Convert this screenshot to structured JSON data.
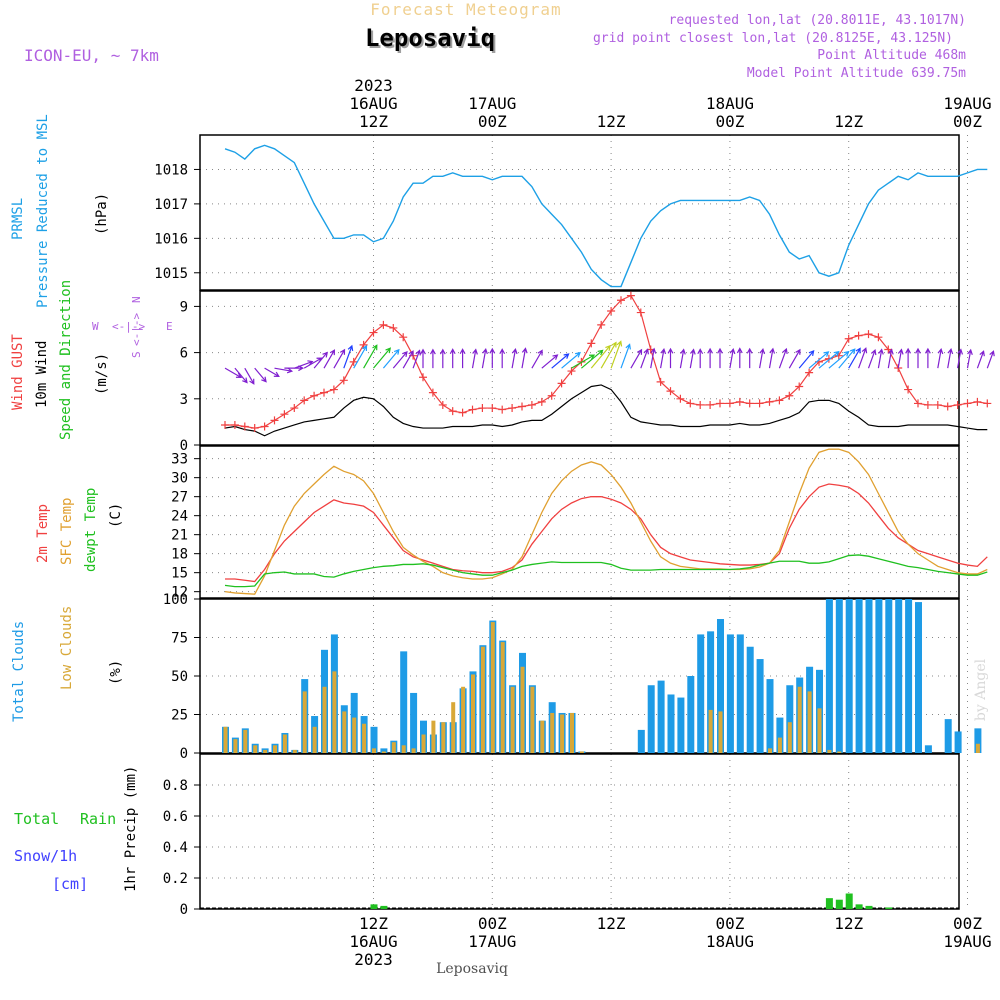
{
  "header": {
    "product": "Forecast Meteogram",
    "location": "Leposaviq",
    "model": "ICON-EU, ~ 7km",
    "requested": "requested lon,lat (20.8011E, 43.1017N)",
    "gridpoint": "grid point closest lon,lat (20.8125E, 43.125N)",
    "point_alt": "Point Altitude 468m",
    "model_alt": "Model Point Altitude 639.75m",
    "footer_location": "Leposaviq",
    "watermark": "by Angel"
  },
  "colors": {
    "pressure": "#1da0e6",
    "gust": "#f04040",
    "wind": "#000000",
    "t2m": "#f04040",
    "sfc": "#e0a030",
    "dew": "#20c020",
    "total_cloud": "#1e9be6",
    "low_cloud": "#d8a838",
    "rain": "#20c020",
    "snow": "#4040ff",
    "purple": "#b060e0"
  },
  "time_axis": {
    "top_labels": [
      {
        "hour": 15,
        "lines": [
          "2023",
          "16AUG",
          "12Z"
        ]
      },
      {
        "hour": 27,
        "lines": [
          "17AUG",
          "00Z"
        ]
      },
      {
        "hour": 39,
        "lines": [
          "12Z"
        ]
      },
      {
        "hour": 51,
        "lines": [
          "18AUG",
          "00Z"
        ]
      },
      {
        "hour": 63,
        "lines": [
          "12Z"
        ]
      },
      {
        "hour": 75,
        "lines": [
          "19AUG",
          "00Z"
        ]
      }
    ],
    "bottom_labels": [
      {
        "hour": 15,
        "lines": [
          "12Z",
          "16AUG",
          "2023"
        ]
      },
      {
        "hour": 27,
        "lines": [
          "00Z",
          "17AUG"
        ]
      },
      {
        "hour": 39,
        "lines": [
          "12Z"
        ]
      },
      {
        "hour": 51,
        "lines": [
          "00Z",
          "18AUG"
        ]
      },
      {
        "hour": 63,
        "lines": [
          "12Z"
        ]
      },
      {
        "hour": 75,
        "lines": [
          "00Z",
          "19AUG"
        ]
      }
    ]
  },
  "chart_data": [
    {
      "id": "pressure",
      "type": "line",
      "title": "PRMSL Pressure Reduced to MSL",
      "ylabel_lines": [
        "PRMSL",
        "Pressure Reduced to MSL"
      ],
      "units": "(hPa)",
      "yticks": [
        1015,
        1016,
        1017,
        1018
      ],
      "ylim": [
        1014.5,
        1019.0
      ],
      "x_hours": [
        0,
        1,
        2,
        3,
        4,
        5,
        6,
        7,
        8,
        9,
        10,
        11,
        12,
        13,
        14,
        15,
        16,
        17,
        18,
        19,
        20,
        21,
        22,
        23,
        24,
        25,
        26,
        27,
        28,
        29,
        30,
        31,
        32,
        33,
        34,
        35,
        36,
        37,
        38,
        39,
        40,
        41,
        42,
        43,
        44,
        45,
        46,
        47,
        48,
        49,
        50,
        51,
        52,
        53,
        54,
        55,
        56,
        57,
        58,
        59,
        60,
        61,
        62,
        63,
        64,
        65,
        66,
        67,
        68,
        69,
        70,
        71,
        72,
        73,
        74,
        75,
        76,
        77
      ],
      "values": [
        1018.6,
        1018.5,
        1018.3,
        1018.6,
        1018.7,
        1018.6,
        1018.4,
        1018.2,
        1017.6,
        1017.0,
        1016.5,
        1016.0,
        1016.0,
        1016.1,
        1016.1,
        1015.9,
        1016.0,
        1016.5,
        1017.2,
        1017.6,
        1017.6,
        1017.8,
        1017.8,
        1017.9,
        1017.8,
        1017.8,
        1017.8,
        1017.7,
        1017.8,
        1017.8,
        1017.8,
        1017.5,
        1017.0,
        1016.7,
        1016.4,
        1016.0,
        1015.6,
        1015.1,
        1014.8,
        1014.6,
        1014.6,
        1015.3,
        1016.0,
        1016.5,
        1016.8,
        1017.0,
        1017.1,
        1017.1,
        1017.1,
        1017.1,
        1017.1,
        1017.1,
        1017.1,
        1017.2,
        1017.1,
        1016.7,
        1016.1,
        1015.6,
        1015.4,
        1015.5,
        1015.0,
        1014.9,
        1015.0,
        1015.8,
        1016.4,
        1017.0,
        1017.4,
        1017.6,
        1017.8,
        1017.7,
        1017.9,
        1017.8,
        1017.8,
        1017.8,
        1017.8,
        1017.9,
        1018.0,
        1018.0
      ]
    },
    {
      "id": "wind",
      "type": "line",
      "title": "Wind GUST, 10m Wind Speed and Direction",
      "ylabel_lines": [
        "Wind GUST",
        "10m Wind",
        "Speed and Direction"
      ],
      "units": "(m/s)",
      "compass": {
        "n": "N",
        "s": "S",
        "w": "W",
        "e": "E"
      },
      "yticks": [
        0,
        3,
        6,
        9
      ],
      "ylim": [
        0,
        10
      ],
      "x_hours": [
        0,
        1,
        2,
        3,
        4,
        5,
        6,
        7,
        8,
        9,
        10,
        11,
        12,
        13,
        14,
        15,
        16,
        17,
        18,
        19,
        20,
        21,
        22,
        23,
        24,
        25,
        26,
        27,
        28,
        29,
        30,
        31,
        32,
        33,
        34,
        35,
        36,
        37,
        38,
        39,
        40,
        41,
        42,
        43,
        44,
        45,
        46,
        47,
        48,
        49,
        50,
        51,
        52,
        53,
        54,
        55,
        56,
        57,
        58,
        59,
        60,
        61,
        62,
        63,
        64,
        65,
        66,
        67,
        68,
        69,
        70,
        71,
        72,
        73,
        74,
        75,
        76,
        77
      ],
      "gust": [
        1.3,
        1.3,
        1.2,
        1.1,
        1.2,
        1.6,
        2.0,
        2.4,
        2.9,
        3.2,
        3.4,
        3.6,
        4.2,
        5.4,
        6.5,
        7.3,
        7.8,
        7.6,
        7.0,
        5.8,
        4.4,
        3.4,
        2.6,
        2.2,
        2.1,
        2.3,
        2.4,
        2.4,
        2.3,
        2.4,
        2.5,
        2.6,
        2.8,
        3.2,
        4.0,
        4.8,
        5.4,
        6.6,
        7.8,
        8.7,
        9.4,
        9.7,
        8.6,
        6.2,
        4.1,
        3.5,
        3.0,
        2.7,
        2.6,
        2.6,
        2.7,
        2.7,
        2.8,
        2.7,
        2.7,
        2.8,
        2.9,
        3.2,
        3.8,
        4.7,
        5.4,
        5.6,
        5.8,
        6.9,
        7.1,
        7.2,
        7.0,
        6.2,
        5.0,
        3.6,
        2.7,
        2.6,
        2.6,
        2.5,
        2.6,
        2.7,
        2.8,
        2.7
      ],
      "wind": [
        1.1,
        1.2,
        1.0,
        0.9,
        0.6,
        0.9,
        1.1,
        1.3,
        1.5,
        1.6,
        1.7,
        1.8,
        2.4,
        2.9,
        3.1,
        3.0,
        2.5,
        1.8,
        1.4,
        1.2,
        1.1,
        1.1,
        1.1,
        1.2,
        1.2,
        1.2,
        1.3,
        1.3,
        1.2,
        1.3,
        1.5,
        1.6,
        1.6,
        2.0,
        2.5,
        3.0,
        3.4,
        3.8,
        3.9,
        3.6,
        2.8,
        1.8,
        1.5,
        1.4,
        1.3,
        1.3,
        1.2,
        1.2,
        1.2,
        1.3,
        1.3,
        1.3,
        1.4,
        1.3,
        1.3,
        1.4,
        1.6,
        1.8,
        2.1,
        2.8,
        2.9,
        2.9,
        2.7,
        2.2,
        1.8,
        1.3,
        1.2,
        1.2,
        1.2,
        1.3,
        1.3,
        1.3,
        1.3,
        1.3,
        1.2,
        1.1,
        1.0,
        1.0
      ],
      "barb_dirs_deg": [
        300,
        320,
        330,
        320,
        300,
        280,
        270,
        250,
        240,
        220,
        210,
        210,
        200,
        210,
        210,
        220,
        220,
        220,
        210,
        200,
        180,
        180,
        180,
        180,
        180,
        190,
        190,
        180,
        180,
        190,
        190,
        210,
        230,
        230,
        230,
        240,
        230,
        220,
        210,
        200,
        200,
        210,
        200,
        190,
        190,
        180,
        190,
        190,
        180,
        180,
        180,
        190,
        180,
        180,
        190,
        190,
        200,
        210,
        220,
        230,
        230,
        230,
        220,
        210,
        200,
        200,
        190,
        190,
        190,
        180,
        180,
        180,
        190,
        190,
        190,
        190,
        200,
        200
      ]
    },
    {
      "id": "temperature",
      "type": "line",
      "title": "2m Temp, SFC Temp, dewpt Temp",
      "ylabel_lines": [
        "2m Temp",
        "SFC Temp",
        "dewpt Temp"
      ],
      "units": "(C)",
      "yticks": [
        12,
        15,
        18,
        21,
        24,
        27,
        30,
        33
      ],
      "ylim": [
        11,
        35
      ],
      "x_hours": [
        0,
        1,
        2,
        3,
        4,
        5,
        6,
        7,
        8,
        9,
        10,
        11,
        12,
        13,
        14,
        15,
        16,
        17,
        18,
        19,
        20,
        21,
        22,
        23,
        24,
        25,
        26,
        27,
        28,
        29,
        30,
        31,
        32,
        33,
        34,
        35,
        36,
        37,
        38,
        39,
        40,
        41,
        42,
        43,
        44,
        45,
        46,
        47,
        48,
        49,
        50,
        51,
        52,
        53,
        54,
        55,
        56,
        57,
        58,
        59,
        60,
        61,
        62,
        63,
        64,
        65,
        66,
        67,
        68,
        69,
        70,
        71,
        72,
        73,
        74,
        75,
        76,
        77
      ],
      "series": [
        {
          "name": "2m Temp",
          "values": [
            14.0,
            14.0,
            13.8,
            13.6,
            15.5,
            18.0,
            20.0,
            21.5,
            23.0,
            24.5,
            25.5,
            26.5,
            26.0,
            25.8,
            25.5,
            24.5,
            22.5,
            20.5,
            18.5,
            17.5,
            17.0,
            16.5,
            16.0,
            15.5,
            15.3,
            15.2,
            15.0,
            15.0,
            15.2,
            15.8,
            17.0,
            19.5,
            21.5,
            23.5,
            25.0,
            26.0,
            26.7,
            27.0,
            27.0,
            26.6,
            26.0,
            25.0,
            23.5,
            21.0,
            19.0,
            18.0,
            17.5,
            17.0,
            16.8,
            16.6,
            16.4,
            16.3,
            16.2,
            16.2,
            16.3,
            16.5,
            18.0,
            22.0,
            25.0,
            27.0,
            28.5,
            29.0,
            28.8,
            28.5,
            27.5,
            26.0,
            24.0,
            22.0,
            20.5,
            19.5,
            18.5,
            18.0,
            17.5,
            17.0,
            16.5,
            16.2,
            16.0,
            17.5
          ]
        },
        {
          "name": "SFC Temp",
          "values": [
            12.0,
            11.8,
            11.7,
            11.6,
            14.5,
            18.5,
            22.5,
            25.5,
            27.5,
            29.0,
            30.5,
            31.8,
            31.0,
            30.5,
            29.5,
            27.5,
            24.5,
            21.5,
            19.0,
            17.8,
            16.8,
            16.0,
            15.0,
            14.5,
            14.2,
            14.0,
            14.0,
            14.2,
            14.8,
            15.5,
            17.5,
            21.0,
            24.5,
            27.5,
            29.5,
            31.0,
            32.0,
            32.5,
            32.0,
            30.5,
            28.5,
            26.0,
            23.0,
            20.0,
            17.5,
            16.5,
            16.0,
            15.8,
            15.6,
            15.6,
            15.6,
            15.5,
            15.5,
            15.6,
            15.9,
            16.5,
            18.5,
            23.0,
            27.5,
            31.5,
            34.0,
            34.5,
            34.5,
            34.0,
            32.5,
            30.5,
            27.5,
            24.5,
            21.5,
            19.5,
            18.0,
            17.0,
            16.0,
            15.5,
            15.0,
            14.8,
            14.8,
            15.5
          ]
        },
        {
          "name": "dewpt Temp",
          "values": [
            13.0,
            12.8,
            12.8,
            12.9,
            14.8,
            15.0,
            15.1,
            14.8,
            14.8,
            14.8,
            14.4,
            14.3,
            14.8,
            15.2,
            15.5,
            15.8,
            16.0,
            16.1,
            16.3,
            16.3,
            16.4,
            16.2,
            15.8,
            15.4,
            15.0,
            14.8,
            14.6,
            14.6,
            15.0,
            15.4,
            16.0,
            16.3,
            16.5,
            16.7,
            16.6,
            16.6,
            16.6,
            16.6,
            16.6,
            16.3,
            15.7,
            15.4,
            15.4,
            15.4,
            15.5,
            15.5,
            15.5,
            15.5,
            15.5,
            15.5,
            15.5,
            15.5,
            15.6,
            15.8,
            16.2,
            16.5,
            16.8,
            16.8,
            16.8,
            16.5,
            16.5,
            16.7,
            17.2,
            17.7,
            17.8,
            17.6,
            17.2,
            16.8,
            16.4,
            16.0,
            15.8,
            15.5,
            15.2,
            15.0,
            14.8,
            14.6,
            14.6,
            15.1
          ]
        }
      ]
    },
    {
      "id": "clouds",
      "type": "bar",
      "title": "Total Clouds, Low Clouds",
      "ylabel_lines": [
        "Total Clouds",
        "Low Clouds"
      ],
      "units": "(%)",
      "yticks": [
        0,
        25,
        50,
        75,
        100
      ],
      "ylim": [
        0,
        100
      ],
      "x_hours": [
        0,
        1,
        2,
        3,
        4,
        5,
        6,
        7,
        8,
        9,
        10,
        11,
        12,
        13,
        14,
        15,
        16,
        17,
        18,
        19,
        20,
        21,
        22,
        23,
        24,
        25,
        26,
        27,
        28,
        29,
        30,
        31,
        32,
        33,
        34,
        35,
        36,
        37,
        38,
        39,
        40,
        41,
        42,
        43,
        44,
        45,
        46,
        47,
        48,
        49,
        50,
        51,
        52,
        53,
        54,
        55,
        56,
        57,
        58,
        59,
        60,
        61,
        62,
        63,
        64,
        65,
        66,
        67,
        68,
        69,
        70,
        71,
        72,
        73,
        74,
        75,
        76
      ],
      "series": [
        {
          "name": "Total Clouds",
          "values": [
            17,
            10,
            16,
            6,
            3,
            6,
            13,
            2,
            48,
            24,
            67,
            77,
            31,
            39,
            24,
            17,
            3,
            8,
            66,
            39,
            21,
            12,
            20,
            20,
            42,
            53,
            70,
            86,
            73,
            44,
            65,
            44,
            21,
            33,
            26,
            26,
            1,
            0,
            0,
            0,
            0,
            0,
            15,
            44,
            47,
            38,
            36,
            50,
            77,
            79,
            87,
            77,
            77,
            69,
            61,
            48,
            23,
            44,
            49,
            56,
            54,
            100,
            100,
            100,
            100,
            100,
            100,
            100,
            100,
            100,
            98,
            5,
            0,
            22,
            14,
            0,
            16
          ]
        },
        {
          "name": "Low Clouds",
          "values": [
            17,
            9,
            15,
            5,
            2,
            5,
            12,
            2,
            40,
            17,
            43,
            53,
            27,
            23,
            19,
            3,
            1,
            7,
            5,
            3,
            12,
            21,
            20,
            33,
            43,
            51,
            69,
            85,
            72,
            43,
            56,
            43,
            21,
            26,
            25,
            26,
            1,
            0,
            0,
            0,
            0,
            0,
            0,
            0,
            0,
            0,
            0,
            0,
            0,
            28,
            27,
            0,
            0,
            0,
            0,
            3,
            10,
            20,
            43,
            40,
            29,
            2,
            1,
            0,
            0,
            0,
            0,
            0,
            0,
            0,
            0,
            0,
            0,
            0,
            0,
            0,
            6
          ]
        }
      ]
    },
    {
      "id": "precip",
      "type": "bar",
      "title": "1hr Precip (mm)",
      "ylabel_lines": [
        "1hr Precip (mm)"
      ],
      "side_labels": {
        "rain_total": "Total",
        "rain": "Rain",
        "snow": "Snow/1h",
        "snow_unit": "[cm]"
      },
      "yticks": [
        0,
        0.2,
        0.4,
        0.6,
        0.8
      ],
      "ytick_labels": [
        "0",
        "0.2",
        "0.4",
        "0.6",
        "0.8"
      ],
      "ylim": [
        0,
        1.0
      ],
      "rain": [
        {
          "hour": 15,
          "value": 0.03
        },
        {
          "hour": 16,
          "value": 0.02
        },
        {
          "hour": 61,
          "value": 0.07
        },
        {
          "hour": 62,
          "value": 0.06
        },
        {
          "hour": 63,
          "value": 0.1
        },
        {
          "hour": 64,
          "value": 0.03
        },
        {
          "hour": 65,
          "value": 0.02
        },
        {
          "hour": 67,
          "value": 0.01
        }
      ]
    }
  ]
}
